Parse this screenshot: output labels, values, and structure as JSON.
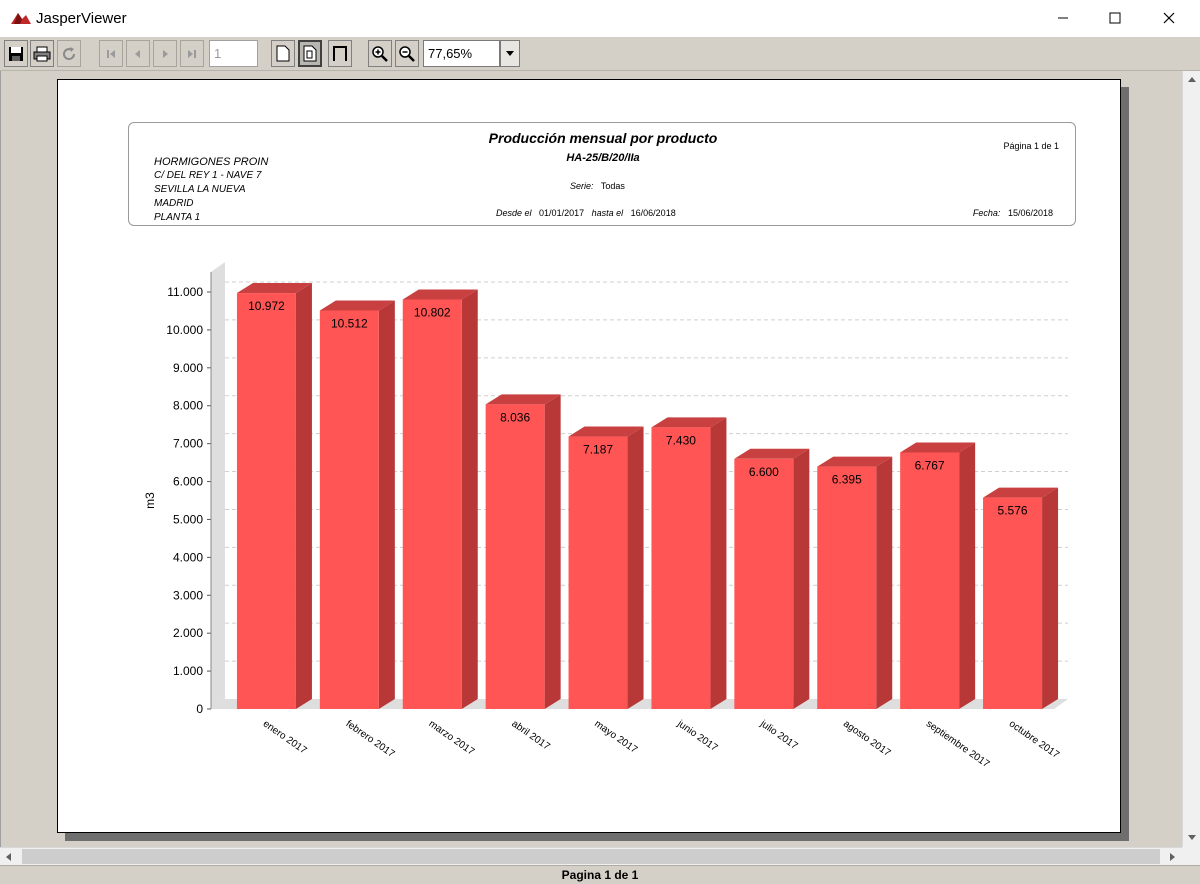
{
  "window": {
    "title": "JasperViewer",
    "icon": "jasper-logo-icon",
    "controls": [
      "minimize-icon",
      "maximize-icon",
      "close-icon"
    ]
  },
  "toolbar": {
    "buttons": [
      "save-icon",
      "print-icon",
      "reload-icon",
      "first-page-icon",
      "previous-page-icon",
      "next-page-icon",
      "last-page-icon",
      "actual-size-icon",
      "fit-page-icon",
      "fit-width-icon",
      "zoom-in-icon",
      "zoom-out-icon"
    ],
    "page_number": "1",
    "zoom_value": "77,65%"
  },
  "report": {
    "title": "Producción mensual por producto",
    "subtitle": "HA-25/B/20/IIa",
    "company": [
      "HORMIGONES PROIN",
      "C/ DEL REY 1 - NAVE 7",
      "SEVILLA LA NUEVA",
      "MADRID",
      "PLANTA 1"
    ],
    "page_info": "Página 1 de 1",
    "serie_label": "Serie:",
    "serie_value": "Todas",
    "desde_label": "Desde el",
    "desde_value": "01/01/2017",
    "hasta_label": "hasta el",
    "hasta_value": "16/06/2018",
    "fecha_label": "Fecha:",
    "fecha_value": "15/06/2018"
  },
  "chart_data": {
    "type": "bar",
    "ylabel": "m3",
    "xlabel": "",
    "ylim": [
      0,
      11000
    ],
    "yticks": [
      "0",
      "1.000",
      "2.000",
      "3.000",
      "4.000",
      "5.000",
      "6.000",
      "7.000",
      "8.000",
      "9.000",
      "10.000",
      "11.000"
    ],
    "categories": [
      "enero 2017",
      "febrero 2017",
      "marzo 2017",
      "abril 2017",
      "mayo 2017",
      "junio 2017",
      "julio 2017",
      "agosto 2017",
      "septiembre 2017",
      "octubre 2017"
    ],
    "values": [
      10972,
      10512,
      10802,
      8036,
      7187,
      7430,
      6600,
      6395,
      6767,
      5576
    ],
    "value_labels": [
      "10.972",
      "10.512",
      "10.802",
      "8.036",
      "7.187",
      "7.430",
      "6.600",
      "6.395",
      "6.767",
      "5.576"
    ],
    "grid": true,
    "bar_color": "#ff5555",
    "bar_side_color": "#b83838",
    "bar_top_color": "#c84040"
  },
  "status": {
    "page_text": "Pagina 1 de 1"
  }
}
